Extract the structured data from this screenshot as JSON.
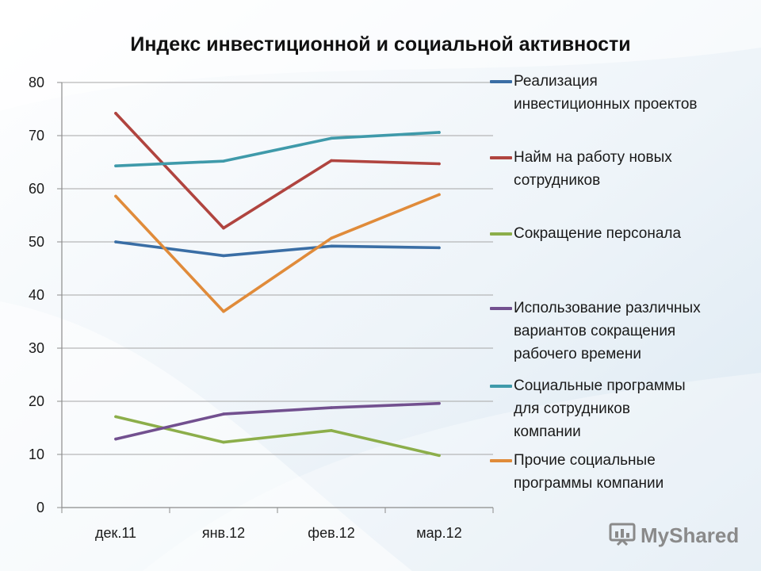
{
  "chart_data": {
    "type": "line",
    "title": "Индекс инвестиционной и социальной активности",
    "categories": [
      "дек.11",
      "янв.12",
      "фев.12",
      "мар.12"
    ],
    "ylim": [
      0,
      80
    ],
    "yticks": [
      0,
      10,
      20,
      30,
      40,
      50,
      60,
      70,
      80
    ],
    "grid": "horizontal",
    "legend_position": "right",
    "series": [
      {
        "name": "Реализация инвестиционных проектов",
        "color": "#3a6ea5",
        "values": [
          50,
          47.4,
          49.2,
          48.9
        ]
      },
      {
        "name": "Найм на работу новых сотрудников",
        "color": "#b0443f",
        "values": [
          74.2,
          52.6,
          65.3,
          64.7
        ]
      },
      {
        "name": "Сокращение персонала",
        "color": "#8cae4a",
        "values": [
          17.1,
          12.3,
          14.5,
          9.8
        ]
      },
      {
        "name": "Использование различных вариантов сокращения рабочего времени",
        "color": "#72508f",
        "values": [
          12.9,
          17.6,
          18.8,
          19.6
        ]
      },
      {
        "name": "Социальные программы для сотрудников компании",
        "color": "#3f9aaa",
        "values": [
          64.3,
          65.2,
          69.5,
          70.6
        ]
      },
      {
        "name": "Прочие социальные программы компании",
        "color": "#e08b3a",
        "values": [
          58.6,
          36.9,
          50.7,
          58.9
        ]
      }
    ]
  },
  "legend": {
    "items": [
      {
        "lines": [
          "Реализация",
          "инвестиционных проектов"
        ]
      },
      {
        "lines": [
          "Найм на работу новых",
          "сотрудников"
        ]
      },
      {
        "lines": [
          "Сокращение персонала"
        ]
      },
      {
        "lines": [
          "Использование различных",
          "вариантов сокращения",
          "рабочего времени"
        ]
      },
      {
        "lines": [
          "Социальные программы",
          "для сотрудников",
          "компании"
        ]
      },
      {
        "lines": [
          "Прочие социальные",
          "программы компании"
        ]
      }
    ]
  },
  "watermark": {
    "text": "MyShared"
  }
}
